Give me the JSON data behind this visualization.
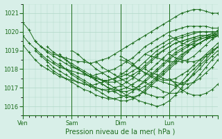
{
  "title": "Pression niveau de la mer( hPa )",
  "ylabel_ticks": [
    1016,
    1017,
    1018,
    1019,
    1020,
    1021
  ],
  "ylim": [
    1015.5,
    1021.5
  ],
  "xlim": [
    0,
    96
  ],
  "xtick_positions": [
    0,
    24,
    48,
    72,
    96
  ],
  "xtick_labels": [
    "Ven",
    "Sam",
    "Dim",
    "Lun",
    ""
  ],
  "vline_positions": [
    0,
    24,
    48,
    72,
    96
  ],
  "bg_color": "#d8efe8",
  "grid_color": "#b0d8c8",
  "line_color": "#1a6b1a",
  "marker_size": 3,
  "line_width": 0.7,
  "series": [
    {
      "x_start": 0,
      "data": [
        1020.5,
        1020.1,
        1019.5,
        1019.2,
        1019.0,
        1018.8,
        1018.7,
        1018.6,
        1018.5,
        1018.4,
        1018.4,
        1018.3,
        1018.4,
        1018.5,
        1018.6,
        1018.8,
        1019.0,
        1019.2,
        1019.4,
        1019.6,
        1019.8,
        1020.0,
        1020.2,
        1020.4,
        1020.6,
        1020.8,
        1021.0,
        1021.1,
        1021.2,
        1021.2,
        1021.1,
        1021.0,
        1021.0,
        1021.0,
        1021.0,
        1021.0,
        1021.0
      ]
    },
    {
      "x_start": 0,
      "data": [
        1019.8,
        1019.4,
        1019.1,
        1018.8,
        1018.5,
        1018.3,
        1018.1,
        1018.0,
        1017.9,
        1017.8,
        1017.7,
        1017.6,
        1017.7,
        1017.8,
        1017.9,
        1018.0,
        1018.2,
        1018.4,
        1018.6,
        1018.9,
        1019.2,
        1019.4,
        1019.6,
        1019.8,
        1020.0,
        1020.1,
        1020.2,
        1020.3,
        1020.3,
        1020.3,
        1020.3,
        1020.2,
        1020.2
      ]
    },
    {
      "x_start": 0,
      "data": [
        1019.3,
        1018.9,
        1018.5,
        1018.2,
        1018.0,
        1017.8,
        1017.6,
        1017.5,
        1017.4,
        1017.3,
        1017.2,
        1017.1,
        1017.2,
        1017.3,
        1017.4,
        1017.5,
        1017.7,
        1017.9,
        1018.2,
        1018.5,
        1018.8,
        1019.0,
        1019.2,
        1019.4,
        1019.6,
        1019.7,
        1019.8,
        1019.9,
        1020.0,
        1020.0,
        1020.0,
        1020.0,
        1020.0
      ]
    },
    {
      "x_start": 6,
      "data": [
        1019.5,
        1019.2,
        1018.9,
        1018.7,
        1018.5,
        1018.3,
        1018.1,
        1018.0,
        1017.8,
        1017.6,
        1017.5,
        1017.4,
        1017.4,
        1017.5,
        1017.6,
        1017.7,
        1017.9,
        1018.1,
        1018.4,
        1018.7,
        1019.0,
        1019.2,
        1019.4,
        1019.6,
        1019.7,
        1019.8,
        1019.9,
        1020.0,
        1020.0,
        1020.0,
        1020.0
      ]
    },
    {
      "x_start": 6,
      "data": [
        1019.0,
        1018.7,
        1018.4,
        1018.1,
        1017.9,
        1017.7,
        1017.5,
        1017.3,
        1017.2,
        1017.1,
        1017.0,
        1016.9,
        1016.9,
        1017.0,
        1017.1,
        1017.3,
        1017.5,
        1017.8,
        1018.1,
        1018.4,
        1018.7,
        1019.0,
        1019.2,
        1019.4,
        1019.5,
        1019.6,
        1019.7,
        1019.8,
        1019.8,
        1019.8,
        1019.8
      ]
    },
    {
      "x_start": 12,
      "data": [
        1019.2,
        1018.9,
        1018.7,
        1018.5,
        1018.3,
        1018.1,
        1017.9,
        1017.7,
        1017.5,
        1017.4,
        1017.3,
        1017.3,
        1017.4,
        1017.5,
        1017.7,
        1017.9,
        1018.2,
        1018.5,
        1018.8,
        1019.0,
        1019.2,
        1019.4,
        1019.5,
        1019.6,
        1019.7,
        1019.8,
        1019.8,
        1019.9,
        1019.9
      ]
    },
    {
      "x_start": 12,
      "data": [
        1018.2,
        1017.9,
        1017.7,
        1017.5,
        1017.3,
        1017.1,
        1016.9,
        1016.8,
        1016.6,
        1016.5,
        1016.4,
        1016.4,
        1016.5,
        1016.6,
        1016.8,
        1017.1,
        1017.4,
        1017.7,
        1018.0,
        1018.3,
        1018.6,
        1018.9,
        1019.1,
        1019.3,
        1019.5,
        1019.6,
        1019.7,
        1019.8,
        1019.8
      ]
    },
    {
      "x_start": 12,
      "data": [
        1018.7,
        1018.4,
        1018.2,
        1018.0,
        1017.8,
        1017.6,
        1017.4,
        1017.2,
        1017.0,
        1016.9,
        1016.8,
        1016.8,
        1016.9,
        1017.0,
        1017.2,
        1017.4,
        1017.7,
        1018.0,
        1018.3,
        1018.6,
        1018.9,
        1019.1,
        1019.3,
        1019.5,
        1019.6,
        1019.7,
        1019.8,
        1019.9,
        1019.9
      ]
    },
    {
      "x_start": 18,
      "data": [
        1018.8,
        1018.5,
        1018.2,
        1018.0,
        1017.8,
        1017.6,
        1017.4,
        1017.2,
        1017.0,
        1016.9,
        1016.8,
        1016.8,
        1016.9,
        1017.1,
        1017.3,
        1017.6,
        1017.9,
        1018.2,
        1018.5,
        1018.8,
        1019.0,
        1019.2,
        1019.4,
        1019.6,
        1019.7,
        1019.8,
        1019.9
      ]
    },
    {
      "x_start": 18,
      "data": [
        1018.3,
        1018.0,
        1017.7,
        1017.5,
        1017.3,
        1017.1,
        1016.9,
        1016.7,
        1016.5,
        1016.4,
        1016.3,
        1016.3,
        1016.4,
        1016.6,
        1016.9,
        1017.2,
        1017.5,
        1017.8,
        1018.1,
        1018.4,
        1018.7,
        1019.0,
        1019.2,
        1019.4,
        1019.6,
        1019.7,
        1019.8
      ]
    },
    {
      "x_start": 24,
      "data": [
        1018.2,
        1018.0,
        1017.8,
        1017.6,
        1017.4,
        1017.2,
        1017.0,
        1016.8,
        1016.6,
        1016.5,
        1016.5,
        1016.6,
        1016.8,
        1017.1,
        1017.4,
        1017.7,
        1018.0,
        1018.3,
        1018.6,
        1018.9,
        1019.2,
        1019.4,
        1019.6,
        1019.8,
        1019.9
      ]
    },
    {
      "x_start": 24,
      "data": [
        1019.0,
        1018.8,
        1018.5,
        1018.3,
        1018.0,
        1017.8,
        1017.6,
        1017.4,
        1017.2,
        1017.0,
        1016.9,
        1016.9,
        1017.1,
        1017.3,
        1017.6,
        1017.9,
        1018.2,
        1018.5,
        1018.8,
        1019.0,
        1019.2,
        1019.4,
        1019.6,
        1019.7,
        1019.8
      ]
    },
    {
      "x_start": 36,
      "data": [
        1018.4,
        1018.1,
        1017.9,
        1017.7,
        1017.5,
        1017.3,
        1017.1,
        1016.9,
        1016.7,
        1016.6,
        1016.5,
        1016.5,
        1016.7,
        1017.0,
        1017.3,
        1017.7,
        1018.0,
        1018.3,
        1018.7,
        1019.0,
        1019.2,
        1019.5,
        1019.7
      ]
    },
    {
      "x_start": 36,
      "data": [
        1017.6,
        1017.4,
        1017.2,
        1017.0,
        1016.8,
        1016.6,
        1016.5,
        1016.3,
        1016.2,
        1016.1,
        1016.0,
        1016.1,
        1016.3,
        1016.6,
        1017.0,
        1017.4,
        1017.8,
        1018.2,
        1018.5,
        1018.9,
        1019.2,
        1019.4,
        1019.7
      ]
    },
    {
      "x_start": 48,
      "data": [
        1018.7,
        1018.5,
        1018.3,
        1018.0,
        1017.8,
        1017.6,
        1017.4,
        1017.3,
        1017.2,
        1017.1,
        1017.2,
        1017.4,
        1017.7,
        1018.0,
        1018.4,
        1018.7,
        1019.0,
        1019.3,
        1019.5,
        1019.7,
        1019.9
      ]
    },
    {
      "x_start": 48,
      "data": [
        1017.8,
        1017.7,
        1017.6,
        1017.4,
        1017.3,
        1017.1,
        1017.0,
        1016.8,
        1016.7,
        1016.7,
        1016.8,
        1017.0,
        1017.3,
        1017.7,
        1018.1,
        1018.5,
        1018.8,
        1019.1,
        1019.4,
        1019.6,
        1019.8
      ]
    },
    {
      "x_start": 48,
      "data": [
        1018.5,
        1018.4,
        1018.2,
        1018.0,
        1017.8,
        1017.7,
        1017.5,
        1017.4,
        1017.4,
        1017.5,
        1017.7,
        1017.9,
        1018.2,
        1018.5,
        1018.8,
        1019.1,
        1019.4,
        1019.6,
        1019.8,
        1020.0,
        1020.1
      ]
    },
    {
      "x_start": 60,
      "data": [
        1018.0,
        1017.8,
        1017.7,
        1017.5,
        1017.4,
        1017.3,
        1017.2,
        1017.2,
        1017.3,
        1017.5,
        1017.8,
        1018.1,
        1018.5,
        1018.8,
        1019.2,
        1019.5,
        1019.7,
        1020.0,
        1020.2
      ]
    },
    {
      "x_start": 60,
      "data": [
        1018.8,
        1018.7,
        1018.6,
        1018.5,
        1018.4,
        1018.4,
        1018.4,
        1018.5,
        1018.7,
        1019.0,
        1019.3,
        1019.6,
        1019.8,
        1020.0,
        1020.2,
        1020.4,
        1020.5,
        1020.6,
        1020.7
      ]
    },
    {
      "x_start": 72,
      "data": [
        1017.5,
        1017.2,
        1016.9,
        1016.7,
        1016.6,
        1016.6,
        1016.7,
        1016.9,
        1017.2,
        1017.6,
        1018.0,
        1018.4,
        1018.8,
        1019.2,
        1019.5,
        1019.8,
        1020.1,
        1020.3,
        1020.5,
        1020.7,
        1020.9
      ]
    },
    {
      "x_start": 72,
      "data": [
        1019.8,
        1019.6,
        1019.4,
        1019.3,
        1019.3,
        1019.4,
        1019.6,
        1019.8,
        1020.1,
        1020.3,
        1020.5,
        1020.7,
        1020.8,
        1020.9,
        1021.0,
        1021.0,
        1021.1,
        1021.1,
        1021.1,
        1021.0,
        1021.0
      ]
    },
    {
      "x_start": 72,
      "data": [
        1018.8,
        1018.6,
        1018.5,
        1018.4,
        1018.4,
        1018.5,
        1018.7,
        1018.9,
        1019.2,
        1019.5,
        1019.7,
        1019.9,
        1020.1,
        1020.3,
        1020.4,
        1020.5,
        1020.6,
        1020.7,
        1020.7,
        1020.8,
        1020.8
      ]
    }
  ]
}
